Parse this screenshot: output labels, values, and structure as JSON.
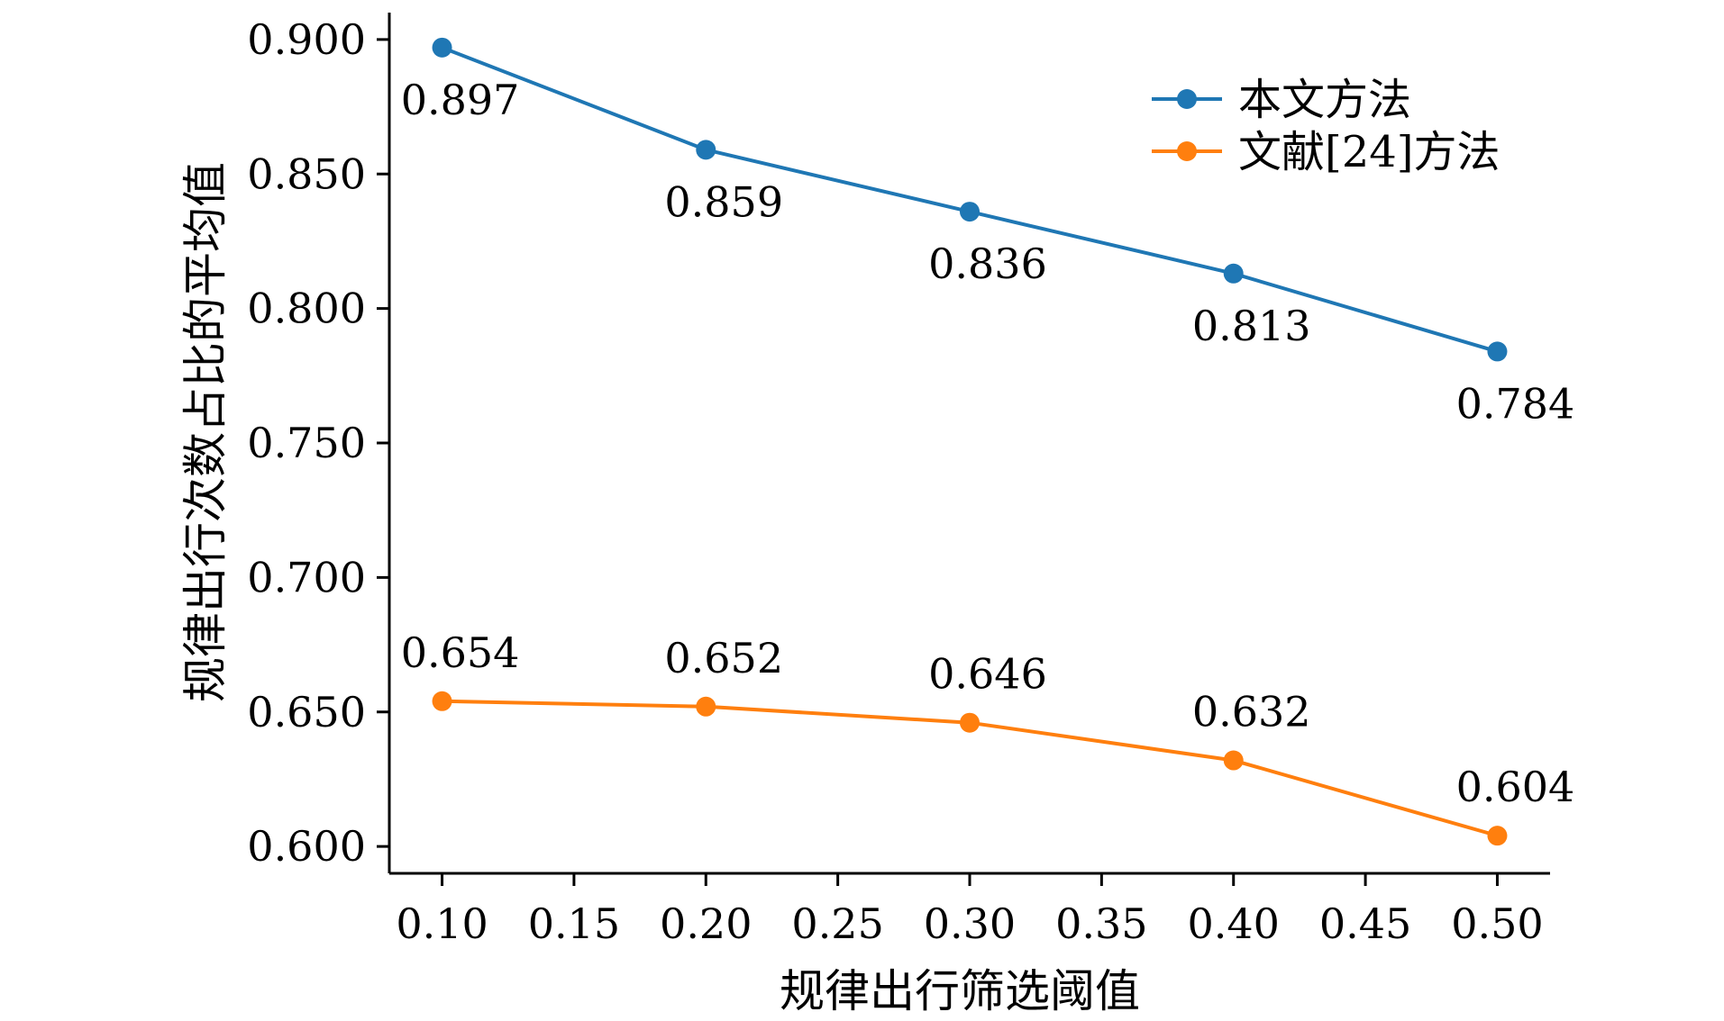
{
  "chart_data": {
    "type": "line",
    "xlabel": "规律出行筛选阈值",
    "ylabel": "规律出行次数占比的平均值",
    "x": [
      0.1,
      0.2,
      0.3,
      0.4,
      0.5
    ],
    "xlim": [
      0.08,
      0.52
    ],
    "ylim": [
      0.59,
      0.91
    ],
    "xticks": [
      0.1,
      0.15,
      0.2,
      0.25,
      0.3,
      0.35,
      0.4,
      0.45,
      0.5
    ],
    "xtick_labels": [
      "0.10",
      "0.15",
      "0.20",
      "0.25",
      "0.30",
      "0.35",
      "0.40",
      "0.45",
      "0.50"
    ],
    "yticks": [
      0.6,
      0.65,
      0.7,
      0.75,
      0.8,
      0.85,
      0.9
    ],
    "ytick_labels": [
      "0.600",
      "0.650",
      "0.700",
      "0.750",
      "0.800",
      "0.850",
      "0.900"
    ],
    "grid": false,
    "legend_position": "top-right",
    "series": [
      {
        "name": "本文方法",
        "color": "#1f77b4",
        "values": [
          0.897,
          0.859,
          0.836,
          0.813,
          0.784
        ],
        "labels": [
          "0.897",
          "0.859",
          "0.836",
          "0.813",
          "0.784"
        ],
        "label_placement": "below"
      },
      {
        "name": "文献[24]方法",
        "color": "#ff7f0e",
        "values": [
          0.654,
          0.652,
          0.646,
          0.632,
          0.604
        ],
        "labels": [
          "0.654",
          "0.652",
          "0.646",
          "0.632",
          "0.604"
        ],
        "label_placement": "above"
      }
    ]
  }
}
